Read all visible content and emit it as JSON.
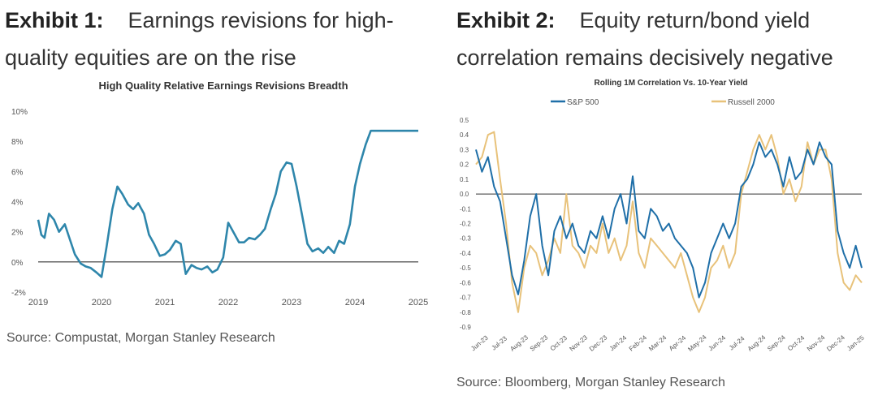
{
  "exhibit1": {
    "label": "Exhibit 1:",
    "title": "Earnings revisions for high-quality equities are on the rise",
    "source": "Source: Compustat, Morgan Stanley Research"
  },
  "exhibit2": {
    "label": "Exhibit 2:",
    "title": "Equity return/bond yield correlation remains decisively negative",
    "source": "Source: Bloomberg, Morgan Stanley Research"
  },
  "chart_data": [
    {
      "type": "line",
      "title": "High Quality Relative Earnings Revisions Breadth",
      "xlabel": "",
      "ylabel": "",
      "xlim": [
        2019.0,
        2025.0
      ],
      "ylim": [
        -2,
        10
      ],
      "yticks": [
        "-2%",
        "0%",
        "2%",
        "4%",
        "6%",
        "8%",
        "10%"
      ],
      "ytick_values": [
        -2,
        0,
        2,
        4,
        6,
        8,
        10
      ],
      "xticks": [
        "2019",
        "2020",
        "2021",
        "2022",
        "2023",
        "2024",
        "2025"
      ],
      "xtick_values": [
        2019,
        2020,
        2021,
        2022,
        2023,
        2024,
        2025
      ],
      "grid": false,
      "zero_line": true,
      "colors": {
        "line": "#2e86ab",
        "zero": "#333333"
      },
      "series": [
        {
          "x": [
            2019.0,
            2019.05,
            2019.1,
            2019.17,
            2019.25,
            2019.33,
            2019.42,
            2019.5,
            2019.58,
            2019.67,
            2019.75,
            2019.83,
            2019.92,
            2020.0,
            2020.08,
            2020.17,
            2020.25,
            2020.33,
            2020.42,
            2020.5,
            2020.58,
            2020.67,
            2020.75,
            2020.83,
            2020.92,
            2021.0,
            2021.08,
            2021.17,
            2021.25,
            2021.33,
            2021.42,
            2021.5,
            2021.58,
            2021.67,
            2021.75,
            2021.83,
            2021.92,
            2022.0,
            2022.08,
            2022.17,
            2022.25,
            2022.33,
            2022.42,
            2022.5,
            2022.58,
            2022.67,
            2022.75,
            2022.83,
            2022.92,
            2023.0,
            2023.08,
            2023.17,
            2023.25,
            2023.33,
            2023.42,
            2023.5,
            2023.58,
            2023.67,
            2023.75,
            2023.83,
            2023.92,
            2024.0,
            2024.08,
            2024.17,
            2024.25,
            2024.33,
            2024.42,
            2024.5,
            2024.58,
            2024.67,
            2024.75,
            2024.83,
            2024.9,
            2024.95,
            2025.0
          ],
          "y": [
            2.8,
            1.8,
            1.6,
            3.2,
            2.8,
            2.0,
            2.5,
            1.5,
            0.5,
            -0.1,
            -0.3,
            -0.4,
            -0.7,
            -1.0,
            1.0,
            3.5,
            5.0,
            4.5,
            3.8,
            3.5,
            3.9,
            3.2,
            1.8,
            1.2,
            0.4,
            0.5,
            0.8,
            1.4,
            1.2,
            -0.8,
            -0.2,
            -0.4,
            -0.5,
            -0.3,
            -0.7,
            -0.5,
            0.3,
            2.6,
            2.0,
            1.3,
            1.3,
            1.6,
            1.5,
            1.8,
            2.2,
            3.5,
            4.5,
            6.0,
            6.6,
            6.5,
            5.0,
            3.0,
            1.2,
            0.7,
            0.9,
            0.6,
            1.0,
            0.6,
            1.4,
            1.2,
            2.5,
            5.0,
            6.5,
            7.8,
            8.7,
            8.7,
            8.7,
            8.7,
            8.7,
            8.7,
            8.7,
            8.7,
            8.7,
            8.7,
            8.7
          ]
        }
      ]
    },
    {
      "type": "line",
      "title": "Rolling 1M Correlation Vs. 10-Year Yield",
      "xlabel": "",
      "ylabel": "",
      "ylim": [
        -0.9,
        0.5
      ],
      "yticks": [
        "0.5",
        "0.4",
        "0.3",
        "0.2",
        "0.1",
        "0.0",
        "-0.1",
        "-0.2",
        "-0.3",
        "-0.4",
        "-0.5",
        "-0.6",
        "-0.7",
        "-0.8",
        "-0.9"
      ],
      "ytick_values": [
        0.5,
        0.4,
        0.3,
        0.2,
        0.1,
        0.0,
        -0.1,
        -0.2,
        -0.3,
        -0.4,
        -0.5,
        -0.6,
        -0.7,
        -0.8,
        -0.9
      ],
      "xticks": [
        "Jun-23",
        "Jul-23",
        "Aug-23",
        "Sep-23",
        "Oct-23",
        "Nov-23",
        "Dec-23",
        "Jan-24",
        "Feb-24",
        "Mar-24",
        "Apr-24",
        "May-24",
        "Jun-24",
        "Jul-24",
        "Aug-24",
        "Sep-24",
        "Oct-24",
        "Nov-24",
        "Dec-24",
        "Jan-25"
      ],
      "grid": false,
      "zero_line": true,
      "legend_position": "top",
      "series": [
        {
          "name": "S&P 500",
          "color": "#1f6fa8",
          "x": [
            0,
            0.3,
            0.6,
            0.9,
            1.2,
            1.5,
            1.8,
            2.1,
            2.4,
            2.7,
            3.0,
            3.3,
            3.6,
            3.9,
            4.2,
            4.5,
            4.8,
            5.1,
            5.4,
            5.7,
            6.0,
            6.3,
            6.6,
            6.9,
            7.2,
            7.5,
            7.8,
            8.1,
            8.4,
            8.7,
            9.0,
            9.3,
            9.6,
            9.9,
            10.2,
            10.5,
            10.8,
            11.1,
            11.4,
            11.7,
            12.0,
            12.3,
            12.6,
            12.9,
            13.2,
            13.5,
            13.8,
            14.1,
            14.4,
            14.7,
            15.0,
            15.3,
            15.6,
            15.9,
            16.2,
            16.5,
            16.8,
            17.1,
            17.4,
            17.7,
            18.0,
            18.3,
            18.6,
            18.9,
            19.2
          ],
          "y": [
            0.3,
            0.15,
            0.25,
            0.05,
            -0.05,
            -0.3,
            -0.55,
            -0.68,
            -0.45,
            -0.15,
            0.0,
            -0.35,
            -0.55,
            -0.25,
            -0.15,
            -0.3,
            -0.2,
            -0.35,
            -0.4,
            -0.25,
            -0.3,
            -0.15,
            -0.3,
            -0.1,
            0.0,
            -0.2,
            0.12,
            -0.25,
            -0.3,
            -0.1,
            -0.15,
            -0.25,
            -0.2,
            -0.3,
            -0.35,
            -0.4,
            -0.5,
            -0.7,
            -0.6,
            -0.4,
            -0.3,
            -0.2,
            -0.3,
            -0.2,
            0.05,
            0.1,
            0.2,
            0.35,
            0.25,
            0.3,
            0.2,
            0.05,
            0.25,
            0.1,
            0.15,
            0.3,
            0.2,
            0.35,
            0.25,
            0.2,
            -0.25,
            -0.4,
            -0.5,
            -0.35,
            -0.5
          ]
        },
        {
          "name": "Russell 2000",
          "color": "#e8c27a",
          "x": [
            0,
            0.3,
            0.6,
            0.9,
            1.2,
            1.5,
            1.8,
            2.1,
            2.4,
            2.7,
            3.0,
            3.3,
            3.6,
            3.9,
            4.2,
            4.5,
            4.8,
            5.1,
            5.4,
            5.7,
            6.0,
            6.3,
            6.6,
            6.9,
            7.2,
            7.5,
            7.8,
            8.1,
            8.4,
            8.7,
            9.0,
            9.3,
            9.6,
            9.9,
            10.2,
            10.5,
            10.8,
            11.1,
            11.4,
            11.7,
            12.0,
            12.3,
            12.6,
            12.9,
            13.2,
            13.5,
            13.8,
            14.1,
            14.4,
            14.7,
            15.0,
            15.3,
            15.6,
            15.9,
            16.2,
            16.5,
            16.8,
            17.1,
            17.4,
            17.7,
            18.0,
            18.3,
            18.6,
            18.9,
            19.2
          ],
          "y": [
            0.2,
            0.25,
            0.4,
            0.42,
            0.1,
            -0.2,
            -0.6,
            -0.8,
            -0.5,
            -0.35,
            -0.4,
            -0.55,
            -0.45,
            -0.3,
            -0.4,
            0.0,
            -0.35,
            -0.4,
            -0.5,
            -0.35,
            -0.4,
            -0.2,
            -0.4,
            -0.3,
            -0.45,
            -0.35,
            -0.05,
            -0.4,
            -0.5,
            -0.3,
            -0.35,
            -0.4,
            -0.45,
            -0.5,
            -0.4,
            -0.55,
            -0.7,
            -0.8,
            -0.7,
            -0.5,
            -0.45,
            -0.35,
            -0.5,
            -0.4,
            0.0,
            0.15,
            0.3,
            0.4,
            0.3,
            0.4,
            0.25,
            0.0,
            0.1,
            -0.05,
            0.05,
            0.35,
            0.2,
            0.3,
            0.3,
            0.1,
            -0.4,
            -0.6,
            -0.65,
            -0.55,
            -0.6
          ]
        }
      ]
    }
  ]
}
